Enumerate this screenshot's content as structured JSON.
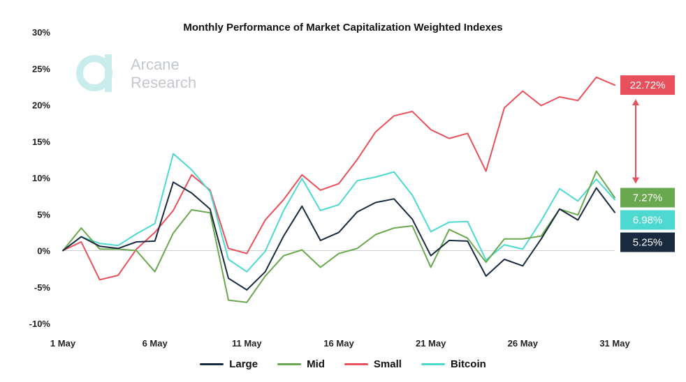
{
  "chart_data": {
    "type": "line",
    "title": "Monthly Performance of Market Capitalization Weighted Indexes",
    "xlabel": "",
    "ylabel": "",
    "x": [
      "1 May",
      "2 May",
      "3 May",
      "4 May",
      "5 May",
      "6 May",
      "7 May",
      "8 May",
      "9 May",
      "10 May",
      "11 May",
      "12 May",
      "13 May",
      "14 May",
      "15 May",
      "16 May",
      "17 May",
      "18 May",
      "19 May",
      "20 May",
      "21 May",
      "22 May",
      "23 May",
      "24 May",
      "25 May",
      "26 May",
      "27 May",
      "28 May",
      "29 May",
      "30 May",
      "31 May"
    ],
    "x_tick_labels": [
      "1 May",
      "6 May",
      "11 May",
      "16 May",
      "21 May",
      "26 May",
      "31 May"
    ],
    "y_tick_labels": [
      "30%",
      "25%",
      "20%",
      "15%",
      "10%",
      "5%",
      "0%",
      "-5%",
      "-10%"
    ],
    "y_ticks": [
      30,
      25,
      20,
      15,
      10,
      5,
      0,
      -5,
      -10
    ],
    "ylim": [
      -10,
      30
    ],
    "grid": false,
    "legend_position": "bottom",
    "series": [
      {
        "name": "Large",
        "color": "#1a2a3e",
        "values": [
          0.0,
          1.9,
          0.6,
          0.3,
          1.2,
          1.3,
          9.4,
          7.9,
          5.7,
          -3.8,
          -5.4,
          -2.9,
          2.0,
          6.1,
          1.4,
          2.5,
          5.3,
          6.6,
          7.1,
          4.3,
          -0.7,
          1.4,
          1.3,
          -3.5,
          -1.2,
          -2.1,
          1.6,
          5.7,
          4.2,
          8.6,
          5.25
        ]
      },
      {
        "name": "Mid",
        "color": "#6aa84f",
        "values": [
          0.0,
          3.1,
          0.2,
          0.2,
          0.0,
          -2.9,
          2.4,
          5.6,
          5.2,
          -6.8,
          -7.1,
          -3.5,
          -0.7,
          0.1,
          -2.3,
          -0.4,
          0.3,
          2.2,
          3.1,
          3.4,
          -2.3,
          2.9,
          1.7,
          -1.6,
          1.6,
          1.6,
          2.0,
          5.7,
          4.9,
          10.9,
          7.27
        ]
      },
      {
        "name": "Small",
        "color": "#e8505b",
        "values": [
          0.0,
          1.2,
          -4.0,
          -3.4,
          0.2,
          2.5,
          5.5,
          10.4,
          8.3,
          0.3,
          -0.4,
          4.2,
          7.0,
          10.4,
          8.3,
          9.2,
          12.5,
          16.3,
          18.5,
          19.1,
          16.6,
          15.4,
          16.1,
          10.9,
          19.6,
          21.9,
          19.9,
          21.1,
          20.6,
          23.8,
          22.72
        ]
      },
      {
        "name": "Bitcoin",
        "color": "#4dd9d0",
        "values": [
          0.0,
          1.9,
          1.0,
          0.7,
          2.3,
          3.7,
          13.3,
          11.1,
          8.1,
          -1.2,
          -2.9,
          -0.1,
          5.5,
          9.9,
          5.5,
          6.3,
          9.6,
          10.1,
          10.8,
          7.6,
          2.6,
          3.9,
          4.0,
          -1.3,
          0.8,
          0.2,
          4.1,
          8.5,
          6.8,
          9.8,
          6.98
        ]
      }
    ],
    "end_labels": [
      {
        "series": "Small",
        "text": "22.72%",
        "color": "#e8505b"
      },
      {
        "series": "Mid",
        "text": "7.27%",
        "color": "#6aa84f"
      },
      {
        "series": "Bitcoin",
        "text": "6.98%",
        "color": "#4dd9d0"
      },
      {
        "series": "Large",
        "text": "5.25%",
        "color": "#1a2a3e"
      }
    ]
  },
  "watermark": {
    "line1": "Arcane",
    "line2": "Research",
    "color": "#c9ecec"
  },
  "annotation_arrow_color": "#e8505b"
}
